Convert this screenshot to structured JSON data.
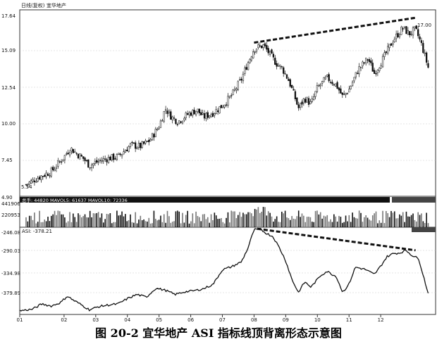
{
  "header": {
    "period": "日线(复权)",
    "stock_name": "宜华地产"
  },
  "caption": "图 20-2    宜华地产 ASI 指标线顶背离形态示意图",
  "chart_data": [
    {
      "type": "candlestick",
      "panel": "price",
      "yticks": [
        "17.64",
        "15.09",
        "12.54",
        "10.00",
        "7.45",
        "4.90"
      ],
      "ylim": [
        4.9,
        17.64
      ],
      "annotations": {
        "high_label": "17.00",
        "low_label": "5.54"
      },
      "close_path": [
        {
          "m": 0.2,
          "v": 5.7
        },
        {
          "m": 0.6,
          "v": 6.2
        },
        {
          "m": 1.0,
          "v": 6.6
        },
        {
          "m": 1.4,
          "v": 7.6
        },
        {
          "m": 1.6,
          "v": 8.2
        },
        {
          "m": 1.8,
          "v": 7.8
        },
        {
          "m": 2.0,
          "v": 7.5
        },
        {
          "m": 2.2,
          "v": 7.0
        },
        {
          "m": 2.5,
          "v": 7.3
        },
        {
          "m": 2.8,
          "v": 7.5
        },
        {
          "m": 3.1,
          "v": 7.6
        },
        {
          "m": 3.5,
          "v": 8.4
        },
        {
          "m": 3.8,
          "v": 8.3
        },
        {
          "m": 4.1,
          "v": 8.7
        },
        {
          "m": 4.4,
          "v": 9.7
        },
        {
          "m": 4.6,
          "v": 10.9
        },
        {
          "m": 4.8,
          "v": 10.3
        },
        {
          "m": 5.0,
          "v": 10.0
        },
        {
          "m": 5.3,
          "v": 10.5
        },
        {
          "m": 5.6,
          "v": 10.8
        },
        {
          "m": 5.8,
          "v": 10.3
        },
        {
          "m": 6.1,
          "v": 10.6
        },
        {
          "m": 6.4,
          "v": 11.1
        },
        {
          "m": 6.7,
          "v": 11.8
        },
        {
          "m": 7.0,
          "v": 12.9
        },
        {
          "m": 7.2,
          "v": 14.0
        },
        {
          "m": 7.4,
          "v": 15.0
        },
        {
          "m": 7.7,
          "v": 15.2
        },
        {
          "m": 7.9,
          "v": 14.6
        },
        {
          "m": 8.1,
          "v": 14.0
        },
        {
          "m": 8.3,
          "v": 13.6
        },
        {
          "m": 8.5,
          "v": 12.8
        },
        {
          "m": 8.7,
          "v": 11.6
        },
        {
          "m": 8.8,
          "v": 10.9
        },
        {
          "m": 9.0,
          "v": 11.6
        },
        {
          "m": 9.2,
          "v": 11.2
        },
        {
          "m": 9.4,
          "v": 12.3
        },
        {
          "m": 9.7,
          "v": 13.0
        },
        {
          "m": 10.0,
          "v": 12.5
        },
        {
          "m": 10.2,
          "v": 11.7
        },
        {
          "m": 10.4,
          "v": 12.2
        },
        {
          "m": 10.7,
          "v": 13.6
        },
        {
          "m": 11.0,
          "v": 14.3
        },
        {
          "m": 11.2,
          "v": 13.3
        },
        {
          "m": 11.5,
          "v": 14.4
        },
        {
          "m": 11.8,
          "v": 15.6
        },
        {
          "m": 12.1,
          "v": 16.4
        },
        {
          "m": 12.3,
          "v": 16.0
        },
        {
          "m": 12.5,
          "v": 16.3
        },
        {
          "m": 12.7,
          "v": 15.2
        },
        {
          "m": 12.9,
          "v": 13.7
        }
      ],
      "trendline": [
        {
          "m": 7.4,
          "v": 15.4
        },
        {
          "m": 12.5,
          "v": 17.1
        }
      ]
    },
    {
      "type": "bar",
      "panel": "volume",
      "legend": "总手: 44820  MAVOL5: 61637  MAVOL10: 72336",
      "yticks": [
        "441906",
        "220953"
      ],
      "ylim": [
        0,
        441906
      ]
    },
    {
      "type": "line",
      "panel": "indicator",
      "legend": "ASI: -378.21",
      "yticks": [
        "-246.08",
        "-290.03",
        "-334.98",
        "-379.89"
      ],
      "ylim": [
        -412,
        -246.08
      ],
      "xtick_labels": [
        "01",
        "02",
        "03",
        "04",
        "05",
        "06",
        "07",
        "08",
        "09",
        "10",
        "11",
        "12"
      ],
      "series": [
        {
          "values": [
            {
              "m": 0.0,
              "v": -405
            },
            {
              "m": 0.4,
              "v": -402
            },
            {
              "m": 0.7,
              "v": -392
            },
            {
              "m": 1.0,
              "v": -396
            },
            {
              "m": 1.3,
              "v": -389
            },
            {
              "m": 1.5,
              "v": -377
            },
            {
              "m": 1.7,
              "v": -385
            },
            {
              "m": 1.9,
              "v": -392
            },
            {
              "m": 2.2,
              "v": -403
            },
            {
              "m": 2.5,
              "v": -397
            },
            {
              "m": 2.8,
              "v": -394
            },
            {
              "m": 3.1,
              "v": -392
            },
            {
              "m": 3.4,
              "v": -382
            },
            {
              "m": 3.7,
              "v": -374
            },
            {
              "m": 4.0,
              "v": -379
            },
            {
              "m": 4.3,
              "v": -362
            },
            {
              "m": 4.6,
              "v": -366
            },
            {
              "m": 4.9,
              "v": -374
            },
            {
              "m": 5.2,
              "v": -369
            },
            {
              "m": 5.5,
              "v": -367
            },
            {
              "m": 5.8,
              "v": -363
            },
            {
              "m": 6.1,
              "v": -355
            },
            {
              "m": 6.4,
              "v": -327
            },
            {
              "m": 6.7,
              "v": -321
            },
            {
              "m": 7.0,
              "v": -312
            },
            {
              "m": 7.2,
              "v": -287
            },
            {
              "m": 7.4,
              "v": -251
            },
            {
              "m": 7.6,
              "v": -250
            },
            {
              "m": 7.8,
              "v": -258
            },
            {
              "m": 8.0,
              "v": -264
            },
            {
              "m": 8.2,
              "v": -285
            },
            {
              "m": 8.4,
              "v": -310
            },
            {
              "m": 8.6,
              "v": -346
            },
            {
              "m": 8.8,
              "v": -370
            },
            {
              "m": 9.0,
              "v": -350
            },
            {
              "m": 9.2,
              "v": -360
            },
            {
              "m": 9.5,
              "v": -338
            },
            {
              "m": 9.7,
              "v": -330
            },
            {
              "m": 10.0,
              "v": -340
            },
            {
              "m": 10.2,
              "v": -370
            },
            {
              "m": 10.4,
              "v": -354
            },
            {
              "m": 10.6,
              "v": -322
            },
            {
              "m": 10.9,
              "v": -326
            },
            {
              "m": 11.2,
              "v": -336
            },
            {
              "m": 11.4,
              "v": -320
            },
            {
              "m": 11.6,
              "v": -302
            },
            {
              "m": 11.8,
              "v": -296
            },
            {
              "m": 12.0,
              "v": -295
            },
            {
              "m": 12.2,
              "v": -290
            },
            {
              "m": 12.4,
              "v": -300
            },
            {
              "m": 12.6,
              "v": -306
            },
            {
              "m": 12.8,
              "v": -350
            },
            {
              "m": 12.9,
              "v": -372
            }
          ]
        }
      ],
      "trendline": [
        {
          "m": 7.5,
          "v": -249
        },
        {
          "m": 12.5,
          "v": -290
        }
      ]
    }
  ]
}
